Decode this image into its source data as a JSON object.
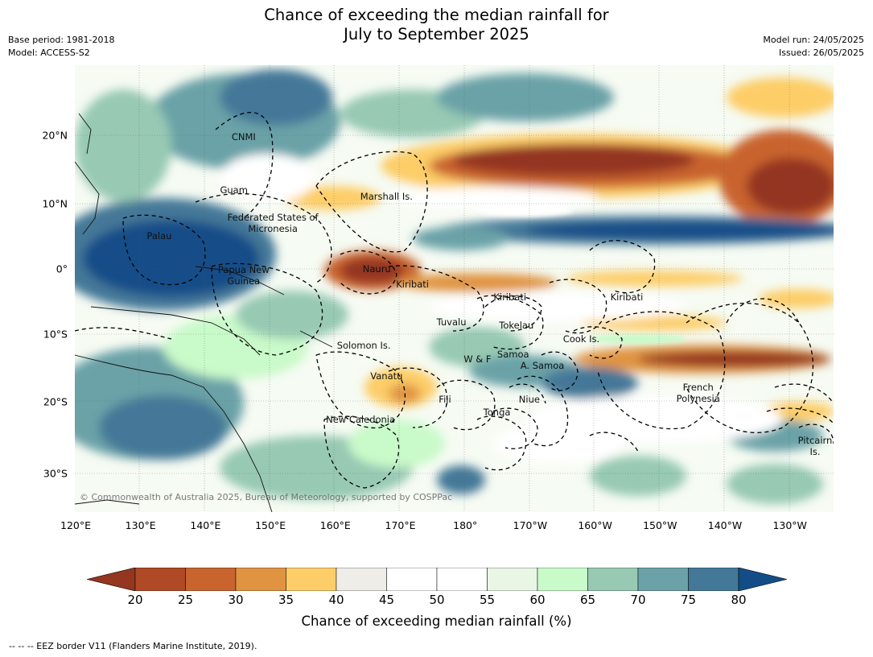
{
  "title_line1": "Chance of exceeding the median rainfall for",
  "title_line2": "July to September 2025",
  "base_period": "Base period: 1981-2018",
  "model": "Model: ACCESS-S2",
  "model_run": "Model run: 24/05/2025",
  "issued": "Issued: 26/05/2025",
  "copyright": "© Commonwealth of Australia 2025, Bureau of Meteorology, supported by COSPPac",
  "footnote": "--  --  -- EEZ border V11 (Flanders Marine Institute, 2019).",
  "colorbar_title": "Chance of exceeding median rainfall (%)",
  "colorbar": {
    "ticks": [
      "20",
      "25",
      "30",
      "35",
      "40",
      "45",
      "50",
      "55",
      "60",
      "65",
      "70",
      "75",
      "80"
    ],
    "colors": [
      "#b04925",
      "#c9642f",
      "#e09442",
      "#fdcd68",
      "#efede8",
      "#ffffff",
      "#ffffff",
      "#e9f6e6",
      "#c9fac9",
      "#97c9b3",
      "#6ba2a7",
      "#447898"
    ],
    "under_color": "#943620",
    "over_color": "#134d88"
  },
  "lat_ticks": [
    "20°N",
    "10°N",
    "0°",
    "10°S",
    "20°S",
    "30°S"
  ],
  "lon_ticks": [
    "120°E",
    "130°E",
    "140°E",
    "150°E",
    "160°E",
    "170°E",
    "180°",
    "170°W",
    "160°W",
    "150°W",
    "140°W",
    "130°W"
  ],
  "regions": [
    {
      "name": "CNMI",
      "lon": 146,
      "lat": 20
    },
    {
      "name": "Guam",
      "lon": 144.5,
      "lat": 12
    },
    {
      "name": "Marshall Is.",
      "lon": 168,
      "lat": 11
    },
    {
      "name": "Federated States of Micronesia",
      "lon": 150.5,
      "lat": 7
    },
    {
      "name": "Palau",
      "lon": 133,
      "lat": 5
    },
    {
      "name": "Nauru",
      "lon": 166.5,
      "lat": 0
    },
    {
      "name": "Papua New Guinea",
      "lon": 146,
      "lat": -1
    },
    {
      "name": "Kiribati",
      "lon": 172,
      "lat": -2.3
    },
    {
      "name": "Kiribati",
      "lon": 187,
      "lat": -4.2
    },
    {
      "name": "Kiribati",
      "lon": 205,
      "lat": -4.2
    },
    {
      "name": "Tuvalu",
      "lon": 178,
      "lat": -8
    },
    {
      "name": "Tokelau",
      "lon": 188,
      "lat": -8.4
    },
    {
      "name": "Cook Is.",
      "lon": 198,
      "lat": -10.5
    },
    {
      "name": "Solomon Is.",
      "lon": 164.5,
      "lat": -11.5
    },
    {
      "name": "Samoa",
      "lon": 187.5,
      "lat": -12.8
    },
    {
      "name": "W & F",
      "lon": 182,
      "lat": -13.5
    },
    {
      "name": "A. Samoa",
      "lon": 192,
      "lat": -14.5
    },
    {
      "name": "Vanatu",
      "lon": 168,
      "lat": -16
    },
    {
      "name": "French Polynesia",
      "lon": 216,
      "lat": -18.5
    },
    {
      "name": "Fiji",
      "lon": 177,
      "lat": -19.5
    },
    {
      "name": "Niue",
      "lon": 190,
      "lat": -19.5
    },
    {
      "name": "Tonga",
      "lon": 185,
      "lat": -21.5
    },
    {
      "name": "New Caledonia",
      "lon": 164,
      "lat": -22.5
    },
    {
      "name": "Pitcairn Is.",
      "lon": 234,
      "lat": -26.5
    }
  ]
}
